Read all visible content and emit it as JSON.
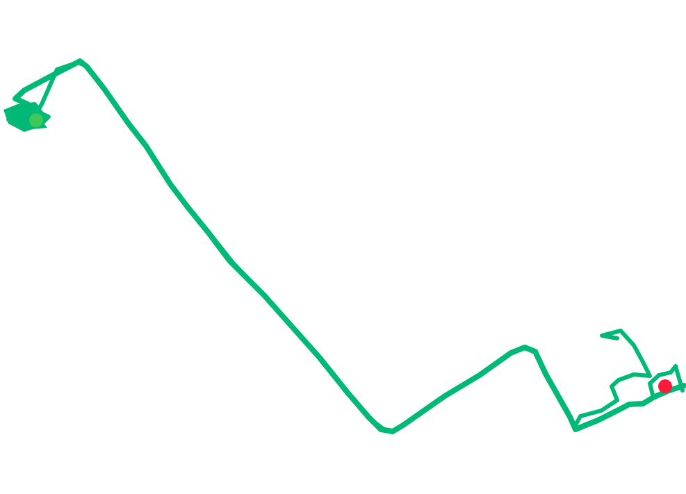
{
  "map": {
    "background_color": "#ffffff",
    "route_color": "#00b976",
    "start_marker": {
      "type": "start-point",
      "color": "#3cc95a"
    },
    "end_marker": {
      "type": "end-point",
      "color": "#ff1a3c"
    }
  }
}
